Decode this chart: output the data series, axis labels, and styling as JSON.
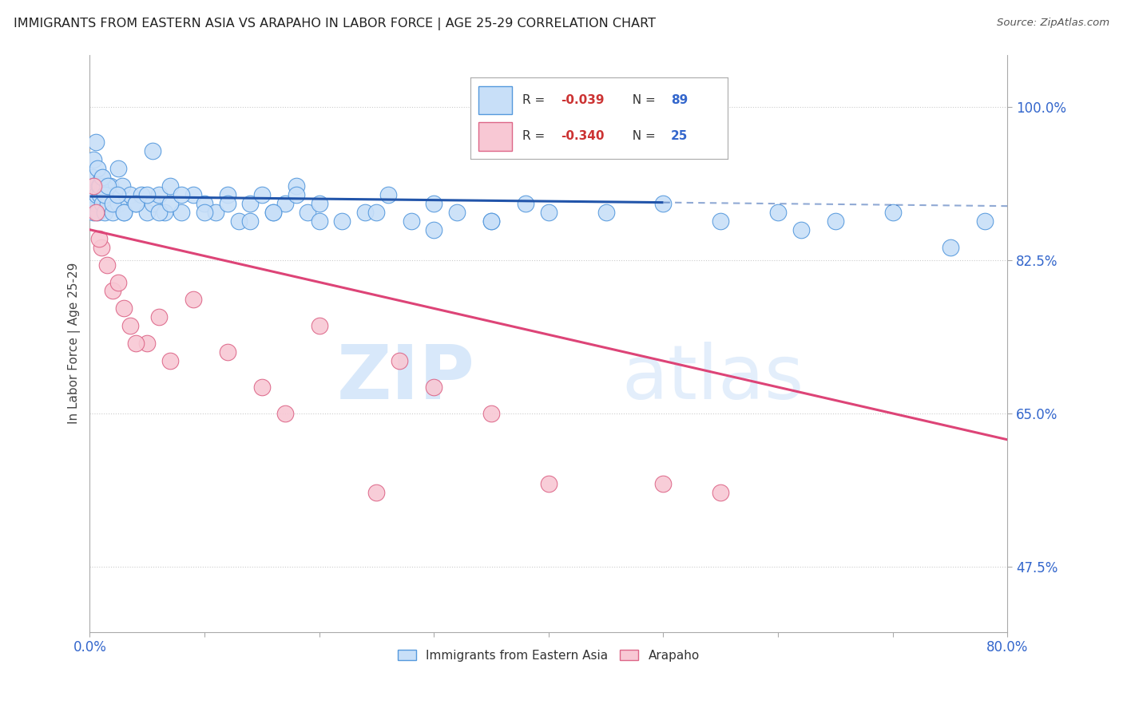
{
  "title": "IMMIGRANTS FROM EASTERN ASIA VS ARAPAHO IN LABOR FORCE | AGE 25-29 CORRELATION CHART",
  "source": "Source: ZipAtlas.com",
  "ylabel": "In Labor Force | Age 25-29",
  "legend_label_blue": "Immigrants from Eastern Asia",
  "legend_label_pink": "Arapaho",
  "r_blue": -0.039,
  "n_blue": 89,
  "r_pink": -0.34,
  "n_pink": 25,
  "xlim": [
    0.0,
    80.0
  ],
  "ylim": [
    40.0,
    106.0
  ],
  "yticks": [
    47.5,
    65.0,
    82.5,
    100.0
  ],
  "ytick_labels": [
    "47.5%",
    "65.0%",
    "82.5%",
    "100.0%"
  ],
  "color_blue_fill": "#c8dff8",
  "color_blue_edge": "#5599dd",
  "color_pink_fill": "#f8c8d4",
  "color_pink_edge": "#dd6688",
  "color_blue_line": "#2255aa",
  "color_pink_line": "#dd4477",
  "background_color": "#ffffff",
  "watermark_zip": "ZIP",
  "watermark_atlas": "atlas",
  "grid_color": "#cccccc",
  "blue_x": [
    0.1,
    0.15,
    0.2,
    0.25,
    0.3,
    0.35,
    0.4,
    0.5,
    0.6,
    0.7,
    0.8,
    0.9,
    1.0,
    1.1,
    1.2,
    1.3,
    1.5,
    1.6,
    1.8,
    2.0,
    2.2,
    2.5,
    2.8,
    3.0,
    3.5,
    4.0,
    4.5,
    5.0,
    5.5,
    6.0,
    6.5,
    7.0,
    8.0,
    9.0,
    10.0,
    11.0,
    12.0,
    13.0,
    14.0,
    15.0,
    16.0,
    17.0,
    18.0,
    19.0,
    20.0,
    22.0,
    24.0,
    26.0,
    28.0,
    30.0,
    32.0,
    35.0,
    38.0,
    40.0,
    0.3,
    0.5,
    0.7,
    0.9,
    1.1,
    1.3,
    1.6,
    2.0,
    2.4,
    3.0,
    4.0,
    5.0,
    6.0,
    7.0,
    8.0,
    10.0,
    12.0,
    14.0,
    16.0,
    18.0,
    20.0,
    25.0,
    30.0,
    35.0,
    45.0,
    50.0,
    55.0,
    60.0,
    62.0,
    65.0,
    70.0,
    75.0,
    78.0,
    2.5,
    5.5
  ],
  "blue_y": [
    89,
    91,
    90,
    92,
    88,
    90,
    91,
    89,
    90,
    88,
    91,
    90,
    92,
    89,
    91,
    88,
    90,
    89,
    91,
    88,
    90,
    89,
    91,
    88,
    90,
    89,
    90,
    88,
    89,
    90,
    88,
    91,
    88,
    90,
    89,
    88,
    90,
    87,
    89,
    90,
    88,
    89,
    91,
    88,
    89,
    87,
    88,
    90,
    87,
    89,
    88,
    87,
    89,
    88,
    94,
    96,
    93,
    91,
    92,
    90,
    91,
    89,
    90,
    88,
    89,
    90,
    88,
    89,
    90,
    88,
    89,
    87,
    88,
    90,
    87,
    88,
    86,
    87,
    88,
    89,
    87,
    88,
    86,
    87,
    88,
    84,
    87,
    93,
    95
  ],
  "pink_x": [
    0.3,
    0.5,
    1.0,
    1.5,
    2.0,
    3.0,
    3.5,
    5.0,
    7.0,
    9.0,
    12.0,
    15.0,
    17.0,
    20.0,
    25.0,
    27.0,
    30.0,
    35.0,
    40.0,
    50.0,
    55.0,
    0.8,
    2.5,
    4.0,
    6.0
  ],
  "pink_y": [
    91,
    88,
    84,
    82,
    79,
    77,
    75,
    73,
    71,
    78,
    72,
    68,
    65,
    75,
    56,
    71,
    68,
    65,
    57,
    57,
    56,
    85,
    80,
    73,
    76
  ],
  "trendline_blue_x0": 0.0,
  "trendline_blue_x1": 80.0,
  "trendline_blue_y0": 89.8,
  "trendline_blue_y1": 88.7,
  "trendline_blue_solid_end": 50.0,
  "trendline_pink_x0": 0.0,
  "trendline_pink_x1": 80.0,
  "trendline_pink_y0": 86.0,
  "trendline_pink_y1": 62.0
}
